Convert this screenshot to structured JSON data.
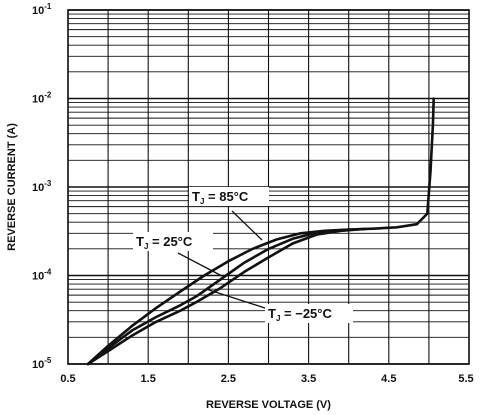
{
  "chart_data": {
    "type": "line",
    "x_scale": "linear",
    "y_scale": "log",
    "xlabel": "REVERSE VOLTAGE (V)",
    "ylabel": "REVERSE CURRENT (A)",
    "xlim": [
      0.5,
      5.5
    ],
    "ylim": [
      1e-05,
      0.1
    ],
    "x_ticks": [
      0.5,
      1.5,
      2.5,
      3.5,
      4.5,
      5.5
    ],
    "x_tick_labels": [
      "0.5",
      "1.5",
      "2.5",
      "3.5",
      "4.5",
      "5.5"
    ],
    "y_ticks": [
      {
        "value": 1e-05,
        "base": "10",
        "exp": "-5"
      },
      {
        "value": 0.0001,
        "base": "10",
        "exp": "-4"
      },
      {
        "value": 0.001,
        "base": "10",
        "exp": "-3"
      },
      {
        "value": 0.01,
        "base": "10",
        "exp": "-2"
      },
      {
        "value": 0.1,
        "base": "10",
        "exp": "-1"
      }
    ],
    "grid": true,
    "series": [
      {
        "name": "TJ = 85°C",
        "label_parts": [
          "T",
          "J",
          " = 85°C"
        ],
        "x": [
          0.75,
          1.0,
          1.3,
          1.6,
          1.9,
          2.2,
          2.5,
          2.8,
          3.1,
          3.4,
          3.7,
          4.0,
          4.3,
          4.6,
          4.85,
          4.98,
          5.02,
          5.05,
          5.06
        ],
        "y": [
          1e-05,
          1.6e-05,
          2.7e-05,
          4.3e-05,
          6.6e-05,
          0.0001,
          0.000145,
          0.0002,
          0.000255,
          0.0003,
          0.00032,
          0.00033,
          0.000338,
          0.00035,
          0.00038,
          0.0005,
          0.0015,
          0.005,
          0.01
        ]
      },
      {
        "name": "TJ = 25°C",
        "label_parts": [
          "T",
          "J",
          " = 25°C"
        ],
        "x": [
          0.75,
          1.0,
          1.3,
          1.6,
          1.9,
          2.1,
          2.4,
          2.7,
          3.0,
          3.3,
          3.6,
          3.9,
          4.2
        ],
        "y": [
          1e-05,
          1.5e-05,
          2.4e-05,
          3.4e-05,
          4.6e-05,
          5.8e-05,
          9e-05,
          0.00014,
          0.0002,
          0.00026,
          0.000305,
          0.000325,
          0.000335
        ]
      },
      {
        "name": "TJ = -25°C",
        "label_parts": [
          "T",
          "J",
          " = −25°C"
        ],
        "x": [
          0.75,
          1.0,
          1.3,
          1.6,
          1.9,
          2.1,
          2.4,
          2.7,
          3.0,
          3.3,
          3.6,
          3.9,
          4.2
        ],
        "y": [
          1e-05,
          1.4e-05,
          2.1e-05,
          3e-05,
          4e-05,
          5e-05,
          7.2e-05,
          0.00011,
          0.00016,
          0.00023,
          0.00029,
          0.00032,
          0.000335
        ]
      }
    ]
  }
}
